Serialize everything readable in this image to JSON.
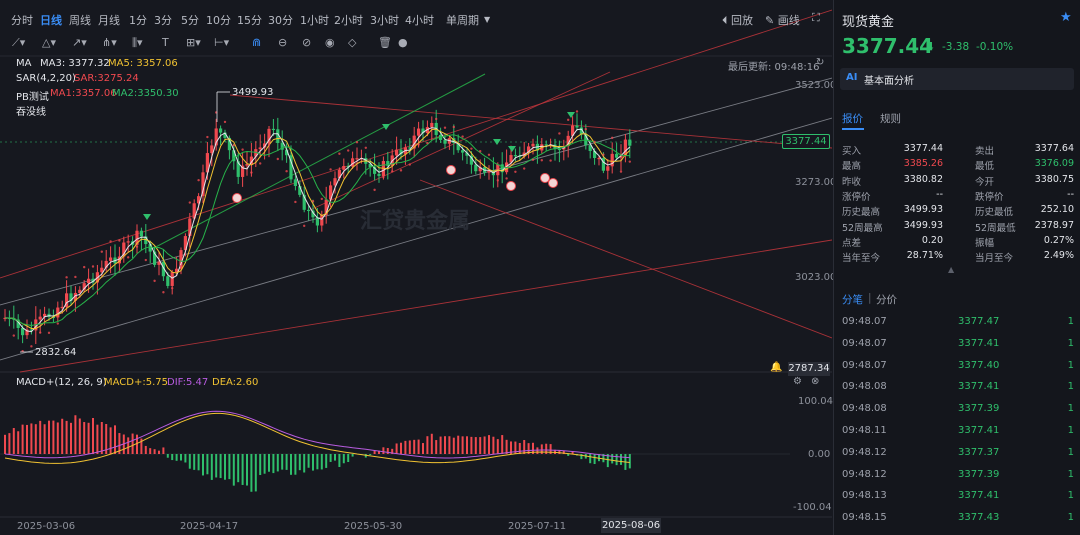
{
  "toolbar": {
    "timeframes": [
      "分时",
      "日线",
      "周线",
      "月线",
      "1分",
      "3分",
      "5分",
      "10分",
      "15分",
      "30分",
      "1小时",
      "2小时",
      "3小时",
      "4小时",
      "单周期"
    ],
    "active_timeframe": "日线",
    "replay_label": "回放",
    "draw_label": "画线"
  },
  "legend": {
    "ma_label": "MA",
    "ma3": "MA3: 3377.32",
    "ma5": "MA5: 3357.06",
    "sar_name": "SAR(4,2,20)",
    "sar_value": "SAR:3275.24",
    "pb_name": "PB测试",
    "pb_ma1": "MA1:3357.06",
    "pb_ma2": "MA2:3350.30",
    "swallow": "吞没线",
    "last_update": "最后更新: 09:48:16"
  },
  "price_axis": {
    "labels": [
      "3523.00",
      "3273.00",
      "3023.00"
    ],
    "current_price_tag": "3377.44",
    "low_tag": "2787.34"
  },
  "annotations": {
    "high_label": "3499.93",
    "low_label": "2832.64",
    "watermark": "汇贷贵金属"
  },
  "macd": {
    "title": "MACD+(12, 26, 9)",
    "macd_value": "MACD+:5.75",
    "dif_value": "DIF:5.47",
    "dea_value": "DEA:2.60",
    "axis_labels": [
      "100.04",
      "0.00",
      "-100.04"
    ]
  },
  "dates": [
    "2025-03-06",
    "2025-04-17",
    "2025-05-30",
    "2025-07-11",
    "2025-08-06"
  ],
  "colors": {
    "up": "#f0494f",
    "down": "#2fbf6c",
    "accent": "#3a8df5",
    "bg": "#16181f"
  },
  "panel": {
    "title": "现货黄金",
    "price": "3377.44",
    "change": "-3.38",
    "change_pct": "-0.10%",
    "ai_label": "基本面分析",
    "tabs": [
      "报价",
      "规则"
    ],
    "quote": [
      {
        "l1": "买入",
        "v1": "3377.44",
        "l2": "卖出",
        "v2": "3377.64"
      },
      {
        "l1": "最高",
        "v1": "3385.26",
        "l2": "最低",
        "v2": "3376.09"
      },
      {
        "l1": "昨收",
        "v1": "3380.82",
        "l2": "今开",
        "v2": "3380.75"
      },
      {
        "l1": "涨停价",
        "v1": "--",
        "l2": "跌停价",
        "v2": "--"
      },
      {
        "l1": "历史最高",
        "v1": "3499.93",
        "l2": "历史最低",
        "v2": "252.10"
      },
      {
        "l1": "52周最高",
        "v1": "3499.93",
        "l2": "52周最低",
        "v2": "2378.97"
      },
      {
        "l1": "点差",
        "v1": "0.20",
        "l2": "振幅",
        "v2": "0.27%"
      },
      {
        "l1": "当年至今",
        "v1": "28.71%",
        "l2": "当月至今",
        "v2": "2.49%"
      }
    ],
    "trade_tabs": [
      "分笔",
      "分价"
    ],
    "trades": [
      {
        "time": "09:48.07",
        "price": "3377.47",
        "qty": "1"
      },
      {
        "time": "09:48.07",
        "price": "3377.41",
        "qty": "1"
      },
      {
        "time": "09:48.07",
        "price": "3377.40",
        "qty": "1"
      },
      {
        "time": "09:48.08",
        "price": "3377.41",
        "qty": "1"
      },
      {
        "time": "09:48.08",
        "price": "3377.39",
        "qty": "1"
      },
      {
        "time": "09:48.11",
        "price": "3377.41",
        "qty": "1"
      },
      {
        "time": "09:48.12",
        "price": "3377.37",
        "qty": "1"
      },
      {
        "time": "09:48.12",
        "price": "3377.39",
        "qty": "1"
      },
      {
        "time": "09:48.13",
        "price": "3377.41",
        "qty": "1"
      },
      {
        "time": "09:48.15",
        "price": "3377.43",
        "qty": "1"
      }
    ]
  }
}
